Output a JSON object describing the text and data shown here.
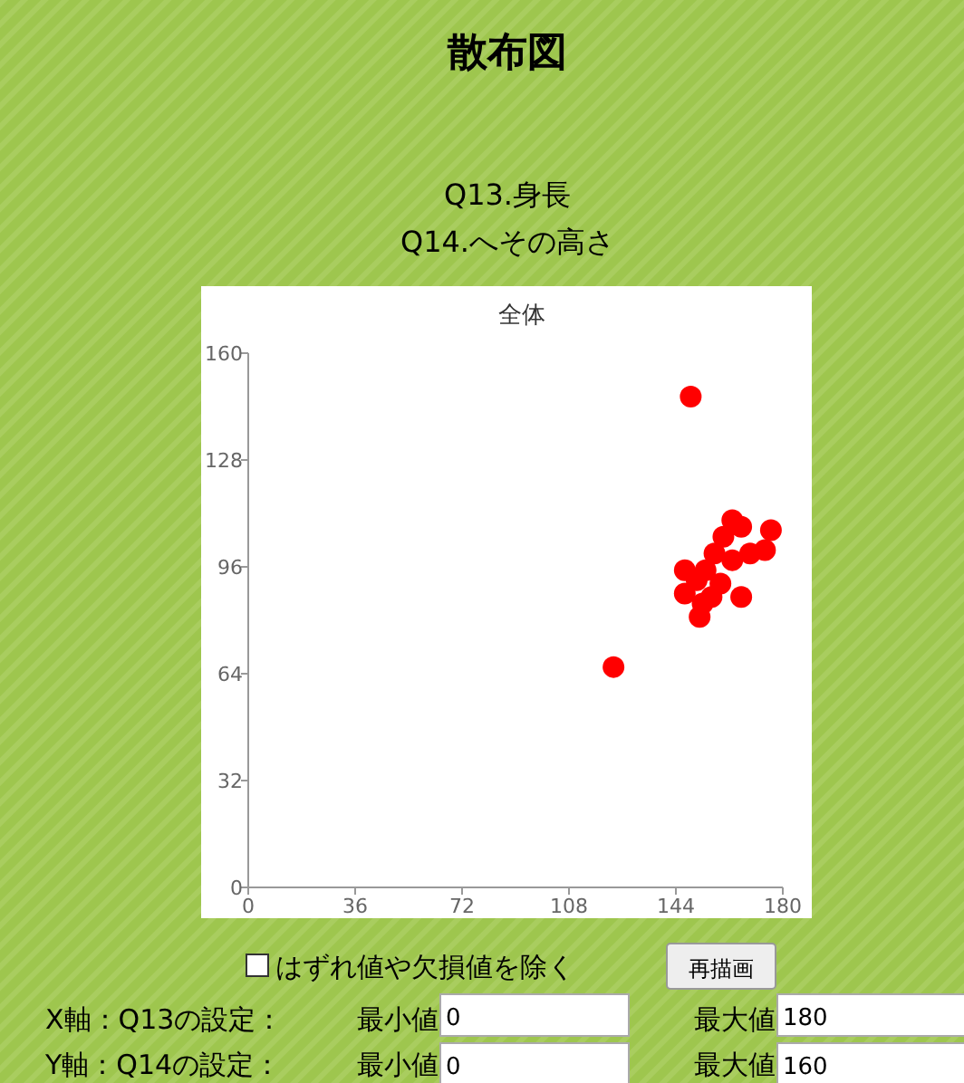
{
  "chart_data": {
    "type": "scatter",
    "title": "散布図",
    "subtitle": "Q13.身長\nQ14.へその高さ",
    "annotations": [
      "全体",
      "はずれ値や欠損値を除く",
      "再描画",
      "X軸：Q13の設定：",
      "最小値",
      "最大値",
      "Y軸：Q14の設定：",
      "最小値",
      "最大値",
      "0",
      "180",
      "0",
      "160"
    ],
    "x": [
      149,
      123,
      152,
      166,
      147,
      147,
      163,
      176,
      166,
      160,
      157,
      154,
      151,
      163,
      169,
      174,
      159,
      156,
      153
    ],
    "series": [
      {
        "color": "#ff0000",
        "values": [
          147,
          66,
          81,
          87,
          95,
          88,
          110,
          107,
          108,
          105,
          100,
          95,
          92,
          98,
          100,
          101,
          91,
          87,
          85
        ]
      }
    ],
    "xlim": [
      0,
      180
    ],
    "xticks": [
      0,
      36,
      72,
      108,
      144,
      180
    ],
    "ylim": [
      0,
      160
    ],
    "yticks": [
      0,
      32,
      64,
      96,
      128,
      160
    ],
    "grid": false,
    "marker": "circle"
  }
}
